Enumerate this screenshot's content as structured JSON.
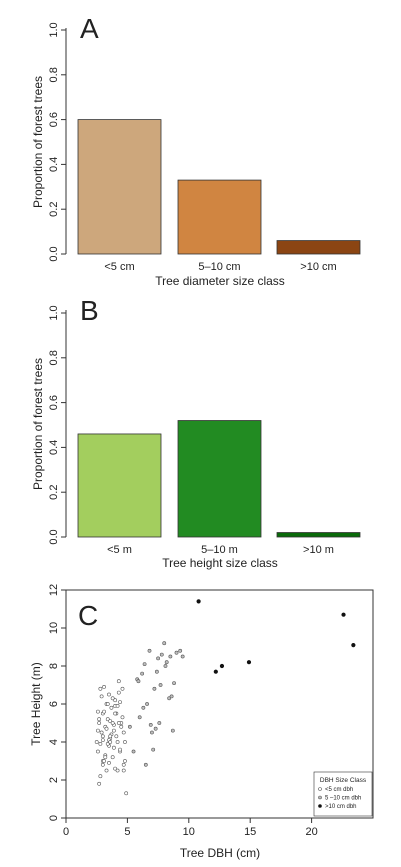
{
  "chart_data": [
    {
      "panel_label": "A",
      "type": "bar",
      "categories": [
        "<5 cm",
        "5–10 cm",
        ">10 cm"
      ],
      "values": [
        0.6,
        0.33,
        0.06
      ],
      "colors": [
        "#CDA77C",
        "#D08541",
        "#8B4513"
      ],
      "xlabel": "Tree diameter size class",
      "ylabel": "Proportion of forest trees",
      "ylim": [
        0,
        1.0
      ],
      "yticks": [
        "0.0",
        "0.2",
        "0.4",
        "0.6",
        "0.8",
        "1.0"
      ],
      "grid": false
    },
    {
      "panel_label": "B",
      "type": "bar",
      "categories": [
        "<5 m",
        "5–10 m",
        ">10 m"
      ],
      "values": [
        0.46,
        0.52,
        0.02
      ],
      "colors": [
        "#A3CE5E",
        "#228B22",
        "#0A6A0A"
      ],
      "xlabel": "Tree height size class",
      "ylabel": "Proportion of forest trees",
      "ylim": [
        0,
        1.0
      ],
      "yticks": [
        "0.0",
        "0.2",
        "0.4",
        "0.6",
        "0.8",
        "1.0"
      ],
      "grid": false
    },
    {
      "panel_label": "C",
      "type": "scatter",
      "xlabel": "Tree DBH (cm)",
      "ylabel": "Tree Height (m)",
      "xlim": [
        0,
        25
      ],
      "ylim": [
        0,
        12
      ],
      "xticks": [
        "0",
        "5",
        "10",
        "15",
        "20"
      ],
      "yticks": [
        "0",
        "2",
        "4",
        "6",
        "8",
        "10",
        "12"
      ],
      "legend": {
        "title": "DBH Size Class",
        "position": "bottom-right",
        "entries": [
          "<5 cm dbh",
          "5 –10 cm dbh",
          ">10 cm dbh"
        ]
      },
      "series": [
        {
          "name": "<5 cm dbh",
          "marker": "open-circle",
          "x": [
            2.5,
            2.6,
            2.7,
            2.8,
            2.9,
            3.0,
            3.0,
            3.1,
            3.2,
            3.3,
            3.3,
            3.4,
            3.5,
            3.5,
            3.6,
            3.7,
            3.8,
            3.9,
            4.0,
            4.0,
            4.1,
            4.2,
            4.3,
            4.4,
            4.5,
            4.6,
            4.7,
            4.8,
            2.6,
            2.7,
            2.8,
            2.9,
            3.0,
            3.1,
            3.2,
            3.3,
            3.4,
            3.5,
            3.6,
            3.7,
            3.8,
            3.9,
            4.0,
            4.1,
            4.2,
            4.3,
            4.4,
            4.5,
            4.6,
            4.7,
            4.8,
            4.9,
            2.7,
            3.0,
            3.2,
            3.4,
            3.6,
            3.8,
            4.0,
            4.2,
            4.4,
            2.8,
            3.1,
            3.5,
            3.9,
            4.3,
            4.7,
            2.6,
            3.0,
            3.6
          ],
          "y": [
            4.0,
            3.5,
            5.0,
            6.8,
            4.5,
            3.0,
            5.5,
            6.9,
            4.8,
            2.5,
            6.0,
            5.2,
            3.8,
            6.5,
            4.2,
            5.8,
            3.2,
            4.9,
            6.2,
            2.6,
            5.5,
            4.0,
            7.2,
            3.5,
            5.0,
            6.8,
            4.5,
            3.0,
            4.6,
            5.2,
            3.9,
            6.4,
            4.1,
            5.6,
            3.3,
            4.7,
            6.0,
            2.9,
            5.1,
            4.4,
            6.3,
            3.7,
            5.9,
            4.3,
            2.5,
            6.6,
            3.6,
            4.8,
            5.3,
            2.8,
            4.0,
            1.3,
            1.8,
            2.8,
            3.2,
            3.9,
            4.3,
            5.0,
            5.5,
            5.9,
            6.1,
            2.2,
            3.0,
            4.1,
            4.6,
            5.0,
            2.5,
            5.6,
            4.3,
            4.0
          ]
        },
        {
          "name": "5 –10 cm dbh",
          "marker": "grey-circle",
          "x": [
            5.2,
            5.5,
            5.8,
            6.0,
            6.2,
            6.4,
            6.5,
            6.6,
            6.8,
            7.0,
            7.1,
            7.2,
            7.4,
            7.5,
            7.6,
            7.8,
            8.0,
            8.2,
            8.4,
            8.5,
            8.7,
            8.8,
            9.0,
            9.3,
            9.5,
            6.3,
            6.9,
            7.3,
            7.7,
            8.1,
            8.6,
            5.9
          ],
          "y": [
            4.8,
            3.5,
            7.3,
            5.3,
            7.6,
            8.1,
            2.8,
            6.0,
            8.8,
            4.5,
            3.6,
            6.8,
            7.7,
            8.4,
            5.0,
            8.6,
            9.2,
            8.2,
            6.3,
            8.5,
            4.6,
            7.1,
            8.7,
            8.8,
            8.5,
            5.8,
            4.9,
            4.7,
            7.0,
            8.0,
            6.4,
            7.2
          ]
        },
        {
          "name": ">10 cm dbh",
          "marker": "filled-circle",
          "x": [
            10.8,
            12.2,
            12.7,
            14.9,
            22.6,
            23.4
          ],
          "y": [
            11.4,
            7.7,
            8.0,
            8.2,
            10.7,
            9.1
          ]
        }
      ]
    }
  ]
}
